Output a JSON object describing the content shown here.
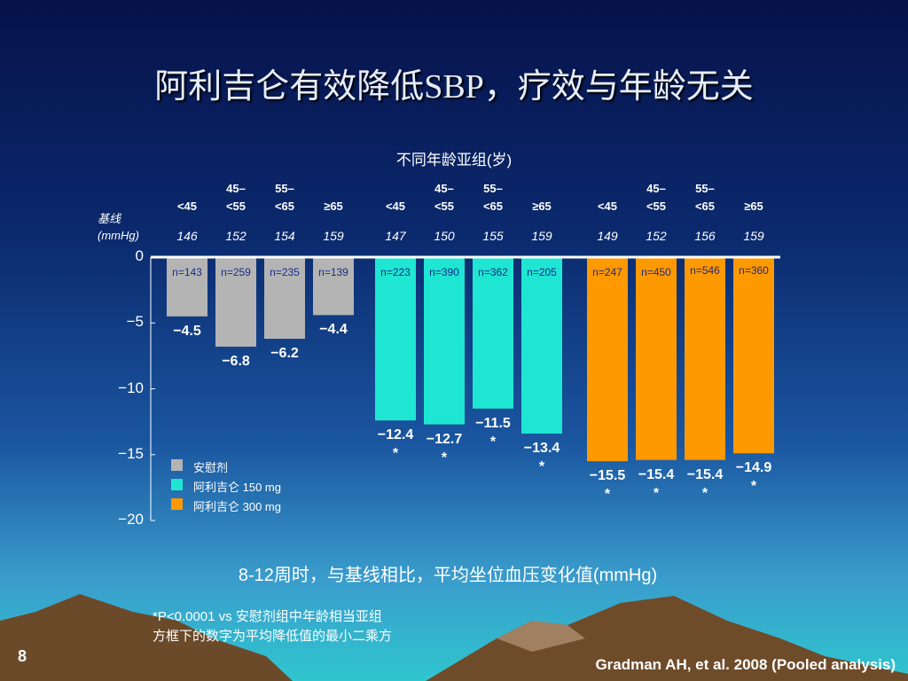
{
  "title": "阿利吉仑有效降低SBP，疗效与年龄无关",
  "chart_data": {
    "type": "bar",
    "subtitle": "不同年龄亚组(岁)",
    "baseline_label": "基线\n(mmHg)",
    "x_label": "8-12周时，与基线相比，平均坐位血压变化值(mmHg)",
    "categories": [
      "<45",
      "45–\n<55",
      "55–\n<65",
      "≥65"
    ],
    "ylim": [
      -20,
      0
    ],
    "yticks": [
      0,
      {
        "value": -5,
        "label": "−5"
      },
      {
        "value": -10,
        "label": "−10"
      },
      {
        "value": -15,
        "label": "−15"
      },
      {
        "value": -20,
        "label": "−20"
      }
    ],
    "series": [
      {
        "name": "安慰剂",
        "color": "#b4b4b4",
        "values": [
          -4.5,
          -6.8,
          -6.2,
          -4.4
        ],
        "value_labels": [
          "−4.5",
          "−6.8",
          "−6.2",
          "−4.4"
        ],
        "baseline": [
          146,
          152,
          154,
          159
        ],
        "n_labels": [
          "n=143",
          "n=259",
          "n=235",
          "n=139"
        ]
      },
      {
        "name": "阿利吉仑 150 mg",
        "color": "#1ee6d2",
        "values": [
          -12.4,
          -12.7,
          -11.5,
          -13.4
        ],
        "value_labels": [
          "−12.4",
          "−12.7",
          "−11.5",
          "−13.4"
        ],
        "baseline": [
          147,
          150,
          155,
          159
        ],
        "n_labels": [
          "n=223",
          "n=390",
          "n=362",
          "n=205"
        ],
        "markers": [
          "*",
          "*",
          "*",
          "*"
        ]
      },
      {
        "name": "阿利吉仑 300 mg",
        "color": "#ff9900",
        "values": [
          -15.5,
          -15.4,
          -15.4,
          -14.9
        ],
        "value_labels": [
          "−15.5",
          "−15.4",
          "−15.4",
          "−14.9"
        ],
        "baseline": [
          149,
          152,
          156,
          159
        ],
        "n_labels": [
          "n=247",
          "n=450",
          "n=546",
          "n=360"
        ],
        "markers": [
          "*",
          "*",
          "*",
          "*"
        ]
      }
    ]
  },
  "footnotes": [
    "*P<0.0001 vs 安慰剂组中年龄相当亚组",
    "方框下的数字为平均降低值的最小二乘方"
  ],
  "page_number": "8",
  "citation": "Gradman AH, et al. 2008 (Pooled analysis)"
}
